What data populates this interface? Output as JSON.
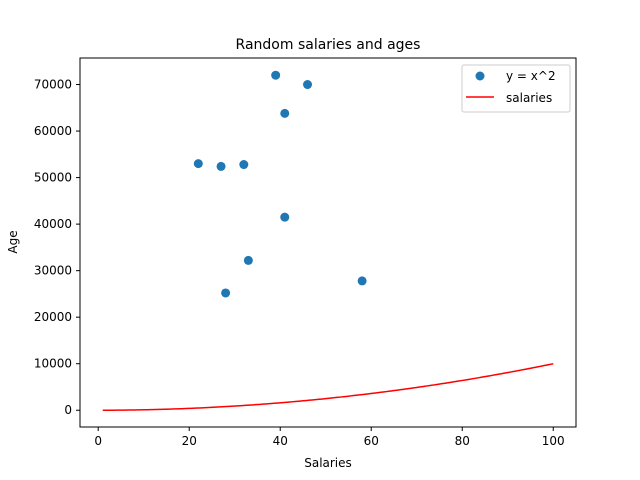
{
  "chart_data": {
    "type": "scatter",
    "title": "Random salaries and ages",
    "xlabel": "Salaries",
    "ylabel": "Age",
    "xlim": [
      -4,
      105
    ],
    "ylim": [
      -3600,
      75700
    ],
    "xticks": [
      0,
      20,
      40,
      60,
      80,
      100
    ],
    "yticks": [
      0,
      10000,
      20000,
      30000,
      40000,
      50000,
      60000,
      70000
    ],
    "grid": false,
    "legend_position": "top-right",
    "series": [
      {
        "name": "y = x^2",
        "kind": "scatter",
        "color": "#1f77b4",
        "points": [
          {
            "x": 22,
            "y": 53000
          },
          {
            "x": 27,
            "y": 52400
          },
          {
            "x": 32,
            "y": 52800
          },
          {
            "x": 39,
            "y": 72000
          },
          {
            "x": 41,
            "y": 63800
          },
          {
            "x": 46,
            "y": 70000
          },
          {
            "x": 41,
            "y": 41500
          },
          {
            "x": 33,
            "y": 32200
          },
          {
            "x": 28,
            "y": 25200
          },
          {
            "x": 58,
            "y": 27800
          }
        ]
      },
      {
        "name": "salaries",
        "kind": "line",
        "color": "#ff0000",
        "function": "x^2",
        "x_range": [
          1,
          100
        ]
      }
    ]
  }
}
